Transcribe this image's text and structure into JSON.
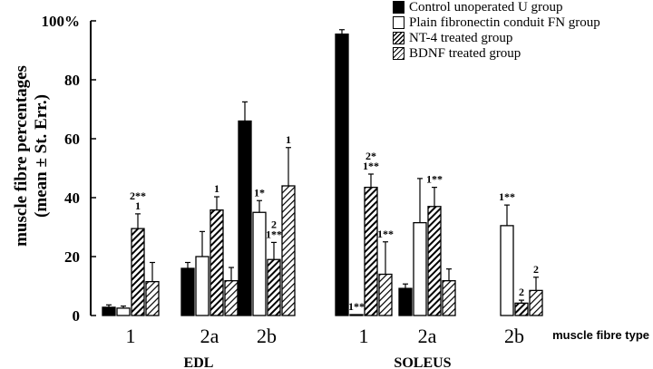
{
  "chart_data": {
    "type": "bar",
    "ylabel_line1": "muscle fibre percentages",
    "ylabel_line2": "(mean ± St. Err.)",
    "xlabel": "muscle fibre type",
    "ylim": [
      0,
      100
    ],
    "yticks": [
      0,
      20,
      40,
      60,
      80,
      100
    ],
    "ytick_labels": [
      "0",
      "20",
      "40",
      "60",
      "80",
      "100%"
    ],
    "groups": [
      "EDL",
      "SOLEUS"
    ],
    "categories": [
      "1",
      "2a",
      "2b",
      "1",
      "2a",
      "2b"
    ],
    "series": [
      {
        "name": "Control unoperated U group",
        "style": "black",
        "values": [
          2.8,
          16,
          66,
          95.5,
          9.2,
          0
        ],
        "errors": [
          0.8,
          2,
          6.5,
          1.5,
          1.5,
          0
        ]
      },
      {
        "name": "Plain fibronectin conduit FN group",
        "style": "white",
        "values": [
          2.5,
          20,
          35,
          0.3,
          31.5,
          30.5
        ],
        "errors": [
          0.7,
          8.5,
          4,
          0,
          15,
          7
        ]
      },
      {
        "name": "NT-4 treated group",
        "style": "hatch",
        "values": [
          29.5,
          35.8,
          19,
          43.5,
          37,
          4.2
        ],
        "errors": [
          5,
          4.5,
          5.8,
          4.5,
          6.5,
          1
        ]
      },
      {
        "name": "BDNF treated group",
        "style": "hatch2",
        "values": [
          11.5,
          11.8,
          44,
          14,
          11.8,
          8.5
        ],
        "errors": [
          6.5,
          4.5,
          13,
          11,
          4,
          4.5
        ]
      }
    ],
    "annotations": [
      {
        "category": 0,
        "series": 2,
        "text": "1"
      },
      {
        "category": 0,
        "series": 2,
        "text": "2**"
      },
      {
        "category": 1,
        "series": 2,
        "text": "1"
      },
      {
        "category": 2,
        "series": 1,
        "text": "1*"
      },
      {
        "category": 2,
        "series": 2,
        "text": "1**"
      },
      {
        "category": 2,
        "series": 2,
        "text": "2"
      },
      {
        "category": 2,
        "series": 3,
        "text": "1"
      },
      {
        "category": 3,
        "series": 1,
        "text": "1**"
      },
      {
        "category": 3,
        "series": 2,
        "text": "1**"
      },
      {
        "category": 3,
        "series": 2,
        "text": "2*"
      },
      {
        "category": 3,
        "series": 3,
        "text": "1**"
      },
      {
        "category": 4,
        "series": 2,
        "text": "1**"
      },
      {
        "category": 5,
        "series": 1,
        "text": "1**"
      },
      {
        "category": 5,
        "series": 2,
        "text": "2"
      },
      {
        "category": 5,
        "series": 3,
        "text": "2"
      }
    ]
  }
}
